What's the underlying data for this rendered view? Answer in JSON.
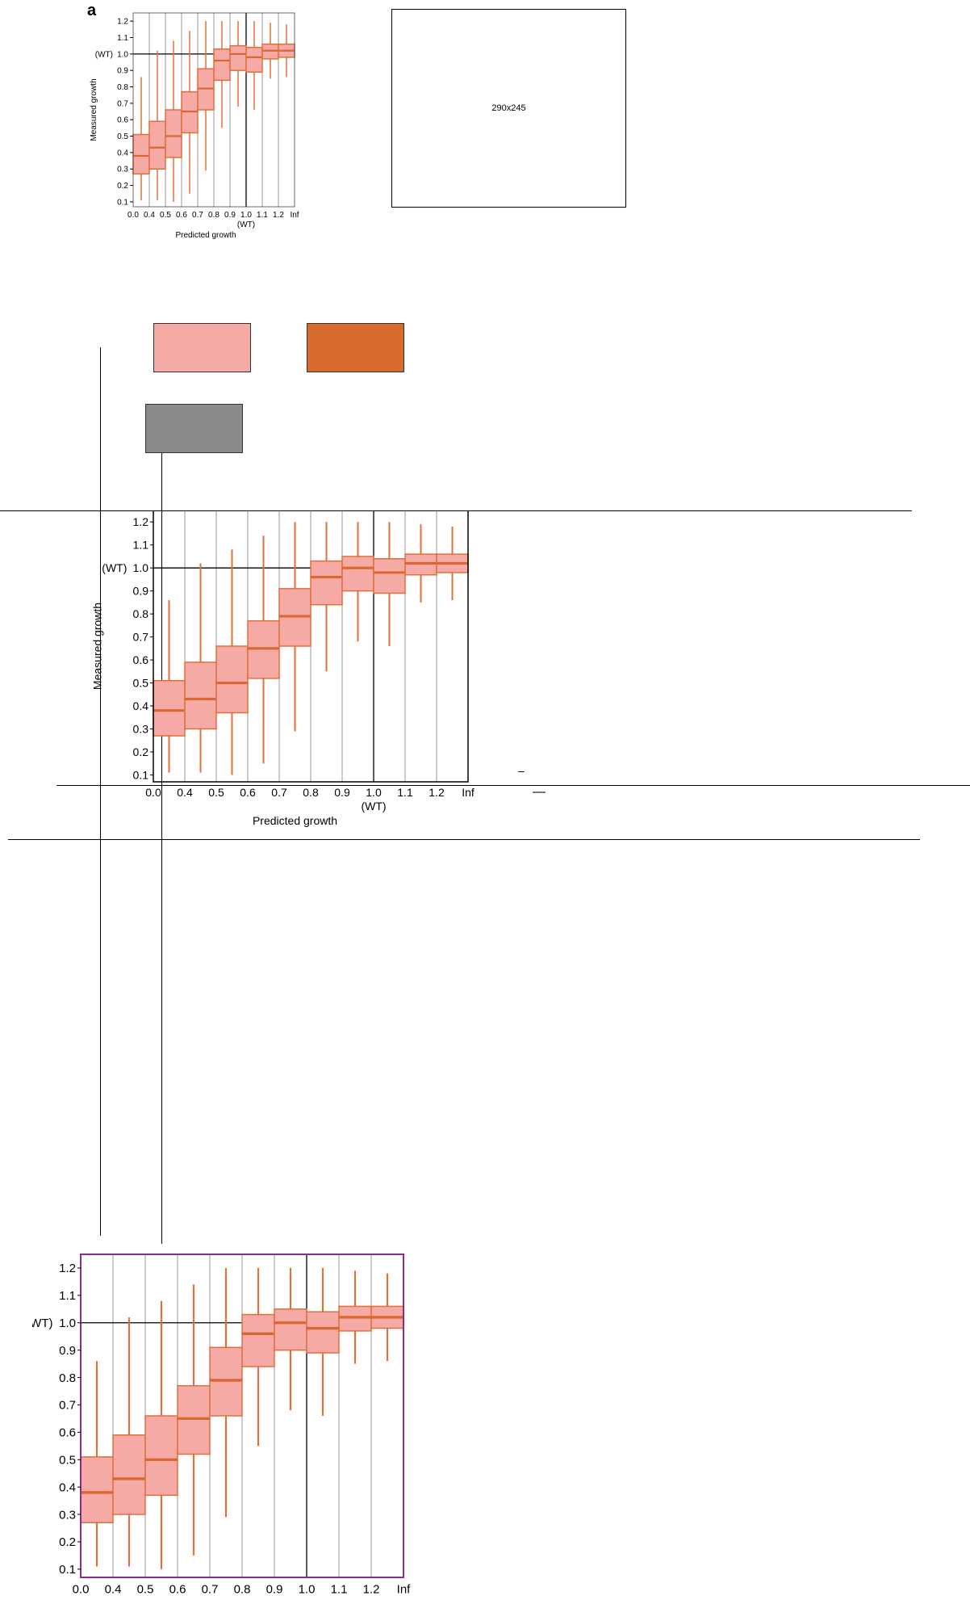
{
  "figure": {
    "panel_label": "a",
    "placeholder_text": "290x245",
    "colors": {
      "box_fill": "#f5aaa6",
      "box_stroke": "#e0703a",
      "median": "#d9672f",
      "swatch_pink": "#f5aaa6",
      "swatch_orange": "#d96a2e",
      "swatch_gray": "#8a8a8a",
      "frame_purple": "#8e2a8e",
      "grid": "#9a9a9a"
    },
    "minor_marks": {
      "dash_1": "–",
      "dash_2": "—"
    }
  },
  "chart_data": {
    "type": "box",
    "xlabel": "Predicted growth",
    "ylabel": "Measured growth",
    "x_tick_labels": [
      "0.0",
      "0.4",
      "0.5",
      "0.6",
      "0.7",
      "0.8",
      "0.9",
      "1.0",
      "1.1",
      "1.2",
      "Inf"
    ],
    "x_ref_label": "(WT)",
    "y_ticks": [
      0.1,
      0.2,
      0.3,
      0.4,
      0.5,
      0.6,
      0.7,
      0.8,
      0.9,
      1.0,
      1.1,
      1.2
    ],
    "y_tick_labels": [
      "0.1",
      "0.2",
      "0.3",
      "0.4",
      "0.5",
      "0.6",
      "0.7",
      "0.8",
      "0.9",
      "1.0",
      "1.1",
      "1.2"
    ],
    "y_ref_label": "(WT)",
    "y_ref_value": 1.0,
    "x_ref_bin_boundary": 7,
    "ylim": [
      0.07,
      1.25
    ],
    "boxes": [
      {
        "bin": "0.0–0.4",
        "whisker_low": 0.11,
        "q1": 0.27,
        "median": 0.38,
        "q3": 0.51,
        "whisker_high": 0.86
      },
      {
        "bin": "0.4–0.5",
        "whisker_low": 0.11,
        "q1": 0.3,
        "median": 0.43,
        "q3": 0.59,
        "whisker_high": 1.02
      },
      {
        "bin": "0.5–0.6",
        "whisker_low": 0.1,
        "q1": 0.37,
        "median": 0.5,
        "q3": 0.66,
        "whisker_high": 1.08
      },
      {
        "bin": "0.6–0.7",
        "whisker_low": 0.15,
        "q1": 0.52,
        "median": 0.65,
        "q3": 0.77,
        "whisker_high": 1.14
      },
      {
        "bin": "0.7–0.8",
        "whisker_low": 0.29,
        "q1": 0.66,
        "median": 0.79,
        "q3": 0.91,
        "whisker_high": 1.2
      },
      {
        "bin": "0.8–0.9",
        "whisker_low": 0.55,
        "q1": 0.84,
        "median": 0.96,
        "q3": 1.03,
        "whisker_high": 1.2
      },
      {
        "bin": "0.9–1.0",
        "whisker_low": 0.68,
        "q1": 0.9,
        "median": 1.0,
        "q3": 1.05,
        "whisker_high": 1.2
      },
      {
        "bin": "1.0–1.1",
        "whisker_low": 0.66,
        "q1": 0.89,
        "median": 0.98,
        "q3": 1.04,
        "whisker_high": 1.2
      },
      {
        "bin": "1.1–1.2",
        "whisker_low": 0.85,
        "q1": 0.97,
        "median": 1.02,
        "q3": 1.06,
        "whisker_high": 1.19
      },
      {
        "bin": "1.2–Inf",
        "whisker_low": 0.86,
        "q1": 0.98,
        "median": 1.02,
        "q3": 1.06,
        "whisker_high": 1.18
      }
    ]
  }
}
